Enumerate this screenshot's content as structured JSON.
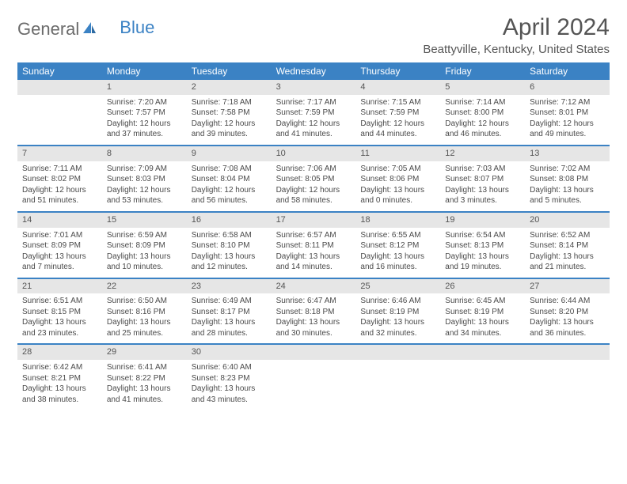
{
  "logo": {
    "part1": "General",
    "part2": "Blue"
  },
  "title": "April 2024",
  "location": "Beattyville, Kentucky, United States",
  "colors": {
    "header_bg": "#3b82c4",
    "header_text": "#ffffff",
    "daynum_bg": "#e6e6e6",
    "border": "#3b82c4",
    "text": "#4a4a4a"
  },
  "day_names": [
    "Sunday",
    "Monday",
    "Tuesday",
    "Wednesday",
    "Thursday",
    "Friday",
    "Saturday"
  ],
  "weeks": [
    [
      {
        "n": "",
        "sr": "",
        "ss": "",
        "dl": ""
      },
      {
        "n": "1",
        "sr": "Sunrise: 7:20 AM",
        "ss": "Sunset: 7:57 PM",
        "dl": "Daylight: 12 hours and 37 minutes."
      },
      {
        "n": "2",
        "sr": "Sunrise: 7:18 AM",
        "ss": "Sunset: 7:58 PM",
        "dl": "Daylight: 12 hours and 39 minutes."
      },
      {
        "n": "3",
        "sr": "Sunrise: 7:17 AM",
        "ss": "Sunset: 7:59 PM",
        "dl": "Daylight: 12 hours and 41 minutes."
      },
      {
        "n": "4",
        "sr": "Sunrise: 7:15 AM",
        "ss": "Sunset: 7:59 PM",
        "dl": "Daylight: 12 hours and 44 minutes."
      },
      {
        "n": "5",
        "sr": "Sunrise: 7:14 AM",
        "ss": "Sunset: 8:00 PM",
        "dl": "Daylight: 12 hours and 46 minutes."
      },
      {
        "n": "6",
        "sr": "Sunrise: 7:12 AM",
        "ss": "Sunset: 8:01 PM",
        "dl": "Daylight: 12 hours and 49 minutes."
      }
    ],
    [
      {
        "n": "7",
        "sr": "Sunrise: 7:11 AM",
        "ss": "Sunset: 8:02 PM",
        "dl": "Daylight: 12 hours and 51 minutes."
      },
      {
        "n": "8",
        "sr": "Sunrise: 7:09 AM",
        "ss": "Sunset: 8:03 PM",
        "dl": "Daylight: 12 hours and 53 minutes."
      },
      {
        "n": "9",
        "sr": "Sunrise: 7:08 AM",
        "ss": "Sunset: 8:04 PM",
        "dl": "Daylight: 12 hours and 56 minutes."
      },
      {
        "n": "10",
        "sr": "Sunrise: 7:06 AM",
        "ss": "Sunset: 8:05 PM",
        "dl": "Daylight: 12 hours and 58 minutes."
      },
      {
        "n": "11",
        "sr": "Sunrise: 7:05 AM",
        "ss": "Sunset: 8:06 PM",
        "dl": "Daylight: 13 hours and 0 minutes."
      },
      {
        "n": "12",
        "sr": "Sunrise: 7:03 AM",
        "ss": "Sunset: 8:07 PM",
        "dl": "Daylight: 13 hours and 3 minutes."
      },
      {
        "n": "13",
        "sr": "Sunrise: 7:02 AM",
        "ss": "Sunset: 8:08 PM",
        "dl": "Daylight: 13 hours and 5 minutes."
      }
    ],
    [
      {
        "n": "14",
        "sr": "Sunrise: 7:01 AM",
        "ss": "Sunset: 8:09 PM",
        "dl": "Daylight: 13 hours and 7 minutes."
      },
      {
        "n": "15",
        "sr": "Sunrise: 6:59 AM",
        "ss": "Sunset: 8:09 PM",
        "dl": "Daylight: 13 hours and 10 minutes."
      },
      {
        "n": "16",
        "sr": "Sunrise: 6:58 AM",
        "ss": "Sunset: 8:10 PM",
        "dl": "Daylight: 13 hours and 12 minutes."
      },
      {
        "n": "17",
        "sr": "Sunrise: 6:57 AM",
        "ss": "Sunset: 8:11 PM",
        "dl": "Daylight: 13 hours and 14 minutes."
      },
      {
        "n": "18",
        "sr": "Sunrise: 6:55 AM",
        "ss": "Sunset: 8:12 PM",
        "dl": "Daylight: 13 hours and 16 minutes."
      },
      {
        "n": "19",
        "sr": "Sunrise: 6:54 AM",
        "ss": "Sunset: 8:13 PM",
        "dl": "Daylight: 13 hours and 19 minutes."
      },
      {
        "n": "20",
        "sr": "Sunrise: 6:52 AM",
        "ss": "Sunset: 8:14 PM",
        "dl": "Daylight: 13 hours and 21 minutes."
      }
    ],
    [
      {
        "n": "21",
        "sr": "Sunrise: 6:51 AM",
        "ss": "Sunset: 8:15 PM",
        "dl": "Daylight: 13 hours and 23 minutes."
      },
      {
        "n": "22",
        "sr": "Sunrise: 6:50 AM",
        "ss": "Sunset: 8:16 PM",
        "dl": "Daylight: 13 hours and 25 minutes."
      },
      {
        "n": "23",
        "sr": "Sunrise: 6:49 AM",
        "ss": "Sunset: 8:17 PM",
        "dl": "Daylight: 13 hours and 28 minutes."
      },
      {
        "n": "24",
        "sr": "Sunrise: 6:47 AM",
        "ss": "Sunset: 8:18 PM",
        "dl": "Daylight: 13 hours and 30 minutes."
      },
      {
        "n": "25",
        "sr": "Sunrise: 6:46 AM",
        "ss": "Sunset: 8:19 PM",
        "dl": "Daylight: 13 hours and 32 minutes."
      },
      {
        "n": "26",
        "sr": "Sunrise: 6:45 AM",
        "ss": "Sunset: 8:19 PM",
        "dl": "Daylight: 13 hours and 34 minutes."
      },
      {
        "n": "27",
        "sr": "Sunrise: 6:44 AM",
        "ss": "Sunset: 8:20 PM",
        "dl": "Daylight: 13 hours and 36 minutes."
      }
    ],
    [
      {
        "n": "28",
        "sr": "Sunrise: 6:42 AM",
        "ss": "Sunset: 8:21 PM",
        "dl": "Daylight: 13 hours and 38 minutes."
      },
      {
        "n": "29",
        "sr": "Sunrise: 6:41 AM",
        "ss": "Sunset: 8:22 PM",
        "dl": "Daylight: 13 hours and 41 minutes."
      },
      {
        "n": "30",
        "sr": "Sunrise: 6:40 AM",
        "ss": "Sunset: 8:23 PM",
        "dl": "Daylight: 13 hours and 43 minutes."
      },
      {
        "n": "",
        "sr": "",
        "ss": "",
        "dl": ""
      },
      {
        "n": "",
        "sr": "",
        "ss": "",
        "dl": ""
      },
      {
        "n": "",
        "sr": "",
        "ss": "",
        "dl": ""
      },
      {
        "n": "",
        "sr": "",
        "ss": "",
        "dl": ""
      }
    ]
  ]
}
